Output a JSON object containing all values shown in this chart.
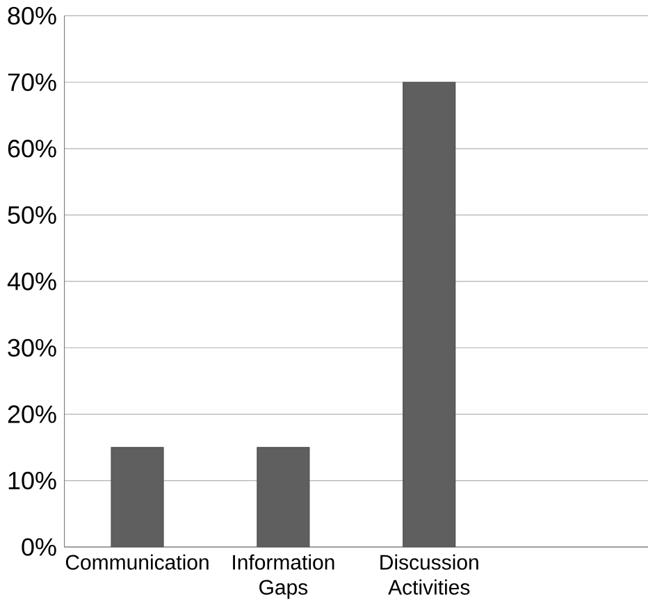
{
  "chart_data": {
    "type": "bar",
    "categories": [
      "Communication",
      "Information Gaps",
      "Discussion Activities",
      null
    ],
    "values": [
      15,
      15,
      70,
      null
    ],
    "color": "#5f5f5f",
    "ylim": [
      0,
      80
    ],
    "yticks": [
      {
        "value": 0,
        "label": "0%"
      },
      {
        "value": 10,
        "label": "10%"
      },
      {
        "value": 20,
        "label": "20%"
      },
      {
        "value": 30,
        "label": "30%"
      },
      {
        "value": 40,
        "label": "40%"
      },
      {
        "value": 50,
        "label": "50%"
      },
      {
        "value": 60,
        "label": "60%"
      },
      {
        "value": 70,
        "label": "70%"
      },
      {
        "value": 80,
        "label": "80%"
      }
    ],
    "grid": "y"
  }
}
